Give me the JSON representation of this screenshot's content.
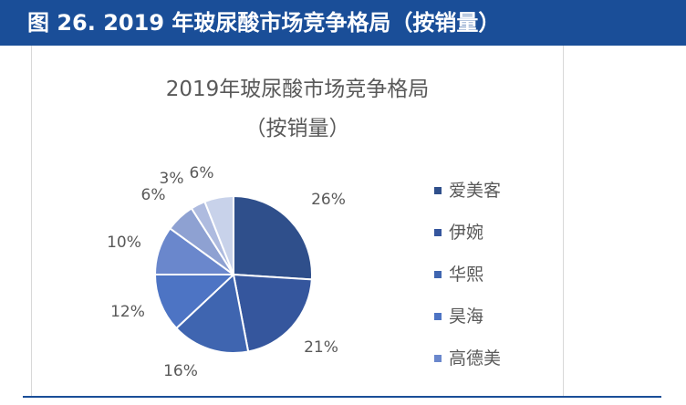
{
  "figure_header": "图 26. 2019 年玻尿酸市场竞争格局（按销量）",
  "chart_data": {
    "type": "pie",
    "title": "2019年玻尿酸市场竞争格局",
    "subtitle": "（按销量）",
    "categories": [
      "爱美客",
      "伊婉",
      "华熙",
      "昊海",
      "高德美",
      "",
      "",
      ""
    ],
    "values": [
      26,
      21,
      16,
      12,
      10,
      6,
      3,
      6
    ],
    "data_labels": [
      "26%",
      "21%",
      "16%",
      "12%",
      "10%",
      "6%",
      "3%",
      "6%"
    ],
    "colors": [
      "#2f4f8b",
      "#35569d",
      "#3f65b0",
      "#4d74c4",
      "#6a87cc",
      "#8ea1d2",
      "#aebbdf",
      "#c8d2ea"
    ],
    "legend": {
      "position": "right",
      "items": [
        "爱美客",
        "伊婉",
        "华熙",
        "昊海",
        "高德美"
      ]
    }
  }
}
